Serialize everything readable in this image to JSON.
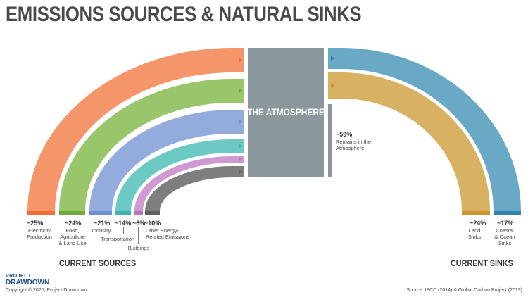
{
  "title": "EMISSIONS SOURCES & NATURAL SINKS",
  "atmosphere_label": "THE ATMOSPHERE",
  "sources_heading": "CURRENT SOURCES",
  "sinks_heading": "CURRENT SINKS",
  "remains": {
    "pct": "~59%",
    "label_line1": "Remains in the",
    "label_line2": "Atmosphere"
  },
  "sources": [
    {
      "pct": "~25%",
      "lines": [
        "Electricity",
        "Production"
      ],
      "color": "#f4956a",
      "bar": "#f26c3a"
    },
    {
      "pct": "~24%",
      "lines": [
        "Food,",
        "Agriculture",
        "& Land Use"
      ],
      "color": "#99c66a",
      "bar": "#6fa83c"
    },
    {
      "pct": "~21%",
      "lines": [
        "Industry"
      ],
      "color": "#94abdd",
      "bar": "#6f8fd0"
    },
    {
      "pct": "~14%",
      "lines": [
        "Transportation"
      ],
      "color": "#6cc9c4",
      "bar": "#3fb3ad"
    },
    {
      "pct": "~6%",
      "lines": [
        "Buildings"
      ],
      "color": "#cf9ad1",
      "bar": "#b777ba"
    },
    {
      "pct": "~10%",
      "lines": [
        "Other Energy-",
        "Related Emissions"
      ],
      "color": "#7e7e7e",
      "bar": "#5f5f5f"
    }
  ],
  "sinks": [
    {
      "pct": "~24%",
      "lines": [
        "Land",
        "Sinks"
      ],
      "color": "#d9b163",
      "bar": "#c9962f"
    },
    {
      "pct": "~17%",
      "lines": [
        "Coastal",
        "& Ocean",
        "Sinks"
      ],
      "color": "#6aa9c6",
      "bar": "#2f86ad"
    }
  ],
  "colors": {
    "atmosphere": "#8a979d",
    "remains_bar": "#8a979d"
  },
  "logo": {
    "line1": "PROJECT",
    "line2": "DRAWDOWN"
  },
  "copyright": "Copyright © 2020, Project Drawdown",
  "source_note": "Source: IPCC (2014) & Global Carbon Project (2019)"
}
